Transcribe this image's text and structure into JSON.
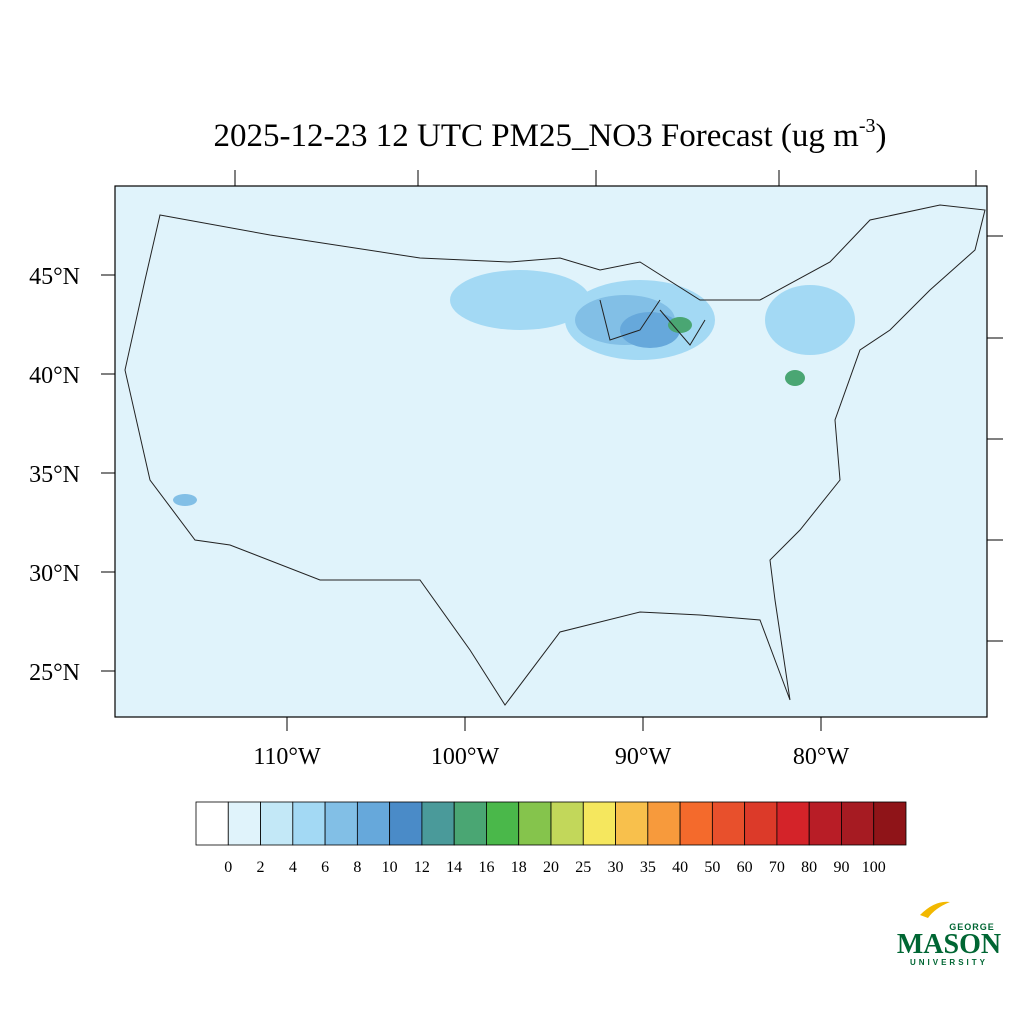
{
  "title": {
    "main": "2025-12-23 12 UTC PM25_NO3 Forecast (ug m",
    "superscript": "-3",
    "close": ")"
  },
  "lat_labels": [
    "45°N",
    "40°N",
    "35°N",
    "30°N",
    "25°N"
  ],
  "lon_labels": [
    "110°W",
    "100°W",
    "90°W",
    "80°W"
  ],
  "colorbar": {
    "levels": [
      0,
      2,
      4,
      6,
      8,
      10,
      12,
      14,
      16,
      18,
      20,
      25,
      30,
      35,
      40,
      50,
      60,
      70,
      80,
      90,
      100
    ],
    "colors": [
      "#ffffff",
      "#e0f3fb",
      "#c3e8f7",
      "#a3d9f4",
      "#82bfe6",
      "#66a8db",
      "#4a8bc8",
      "#4a9a9a",
      "#4aa673",
      "#4ab84a",
      "#85c44c",
      "#c2d75a",
      "#f5e75e",
      "#f8c04c",
      "#f79a3c",
      "#f46a2c",
      "#e8502c",
      "#dc3a29",
      "#d42329",
      "#b81d26",
      "#a61b22",
      "#8f1418"
    ]
  },
  "logo": {
    "top": "GEORGE",
    "middle": "MASON",
    "bottom": "UNIVERSITY"
  }
}
